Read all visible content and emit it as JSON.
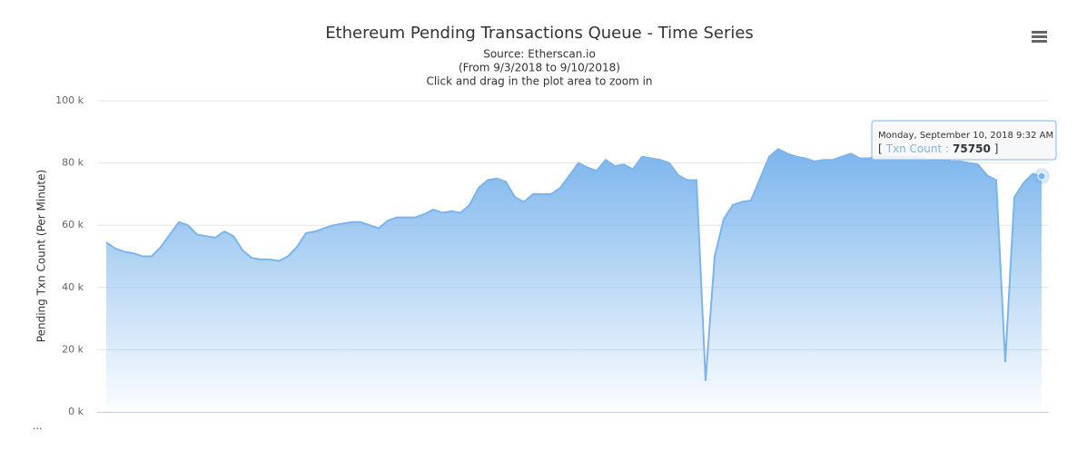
{
  "chart_data": {
    "type": "area",
    "title": "Ethereum Pending Transactions Queue - Time Series",
    "subtitle": [
      "Source: Etherscan.io",
      "(From 9/3/2018 to 9/10/2018)",
      "Click and drag in the plot area to zoom in"
    ],
    "y_label": "Pending Txn Count (Per Minute)",
    "ylim": [
      0,
      100000
    ],
    "yticks": [
      {
        "value": 0,
        "label": "0 k"
      },
      {
        "value": 20000,
        "label": "20 k"
      },
      {
        "value": 40000,
        "label": "40 k"
      },
      {
        "value": 60000,
        "label": "60 k"
      },
      {
        "value": 80000,
        "label": "80 k"
      },
      {
        "value": 100000,
        "label": "100 k"
      }
    ],
    "grid": true,
    "series": [
      {
        "name": "Txn Count",
        "color": "#7cb5ec",
        "values": [
          54500,
          52500,
          51500,
          51000,
          50000,
          50000,
          53000,
          57000,
          61000,
          60000,
          57000,
          56500,
          56000,
          58000,
          56500,
          52000,
          49500,
          49000,
          49000,
          48500,
          50000,
          53000,
          57500,
          58000,
          59000,
          60000,
          60500,
          61000,
          61000,
          60000,
          59000,
          61500,
          62500,
          62500,
          62500,
          63500,
          65000,
          64000,
          64500,
          64000,
          66500,
          72000,
          74500,
          75000,
          74000,
          69000,
          67500,
          70000,
          70000,
          70000,
          72000,
          76000,
          80000,
          78500,
          77500,
          81000,
          79000,
          79500,
          78000,
          82000,
          81500,
          81000,
          80000,
          76000,
          74500,
          74500,
          10000,
          50000,
          62000,
          66500,
          67500,
          68000,
          75000,
          82000,
          84500,
          83000,
          82000,
          81500,
          80500,
          81000,
          81000,
          82000,
          83000,
          81500,
          81500,
          82000,
          82000,
          82000,
          82000,
          82000,
          81500,
          81000,
          81000,
          80500,
          80500,
          80000,
          79500,
          76000,
          74500,
          16000,
          69000,
          73500,
          76500,
          75750
        ]
      }
    ],
    "tooltip": {
      "header": "Monday, September 10, 2018 9:32 AM",
      "open": "[",
      "label": "Txn Count :",
      "value": 75750,
      "close": "]"
    },
    "credits": "..."
  }
}
